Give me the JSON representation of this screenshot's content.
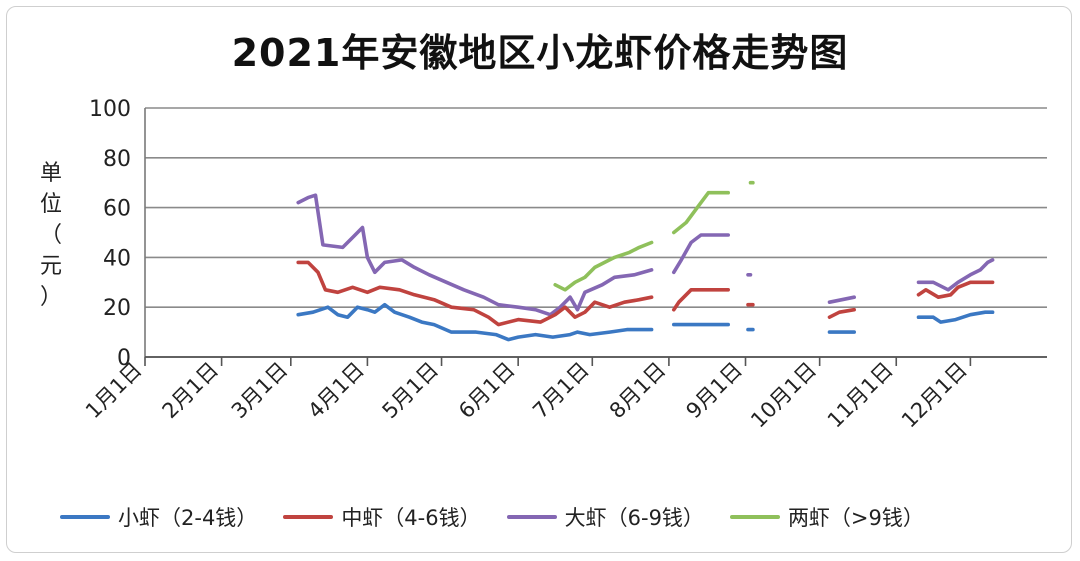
{
  "title": "2021年安徽地区小龙虾价格走势图",
  "colors": {
    "small": "#3b78c3",
    "medium": "#c0433f",
    "large": "#8467b3",
    "xl": "#8fc05b",
    "grid": "#8a8a8a"
  },
  "chart_data": {
    "type": "line",
    "title": "2021年安徽地区小龙虾价格走势图",
    "xlabel": "",
    "ylabel": "单位（元）",
    "ylim": [
      0,
      100
    ],
    "yticks": [
      "0",
      "20",
      "40",
      "60",
      "80",
      "100"
    ],
    "xlim_days": [
      0,
      365
    ],
    "xticks": [
      "1月1日",
      "2月1日",
      "3月1日",
      "4月1日",
      "5月1日",
      "6月1日",
      "7月1日",
      "8月1日",
      "9月1日",
      "10月1日",
      "11月1日",
      "12月1日"
    ],
    "grid": "horizontal",
    "legend_position": "bottom",
    "series": [
      {
        "name": "小虾（2-4钱）",
        "color": "#3b78c3",
        "segments": [
          [
            [
              "3月4日",
              17
            ],
            [
              "3月10日",
              18
            ],
            [
              "3月16日",
              20
            ],
            [
              "3月20日",
              17
            ],
            [
              "3月24日",
              16
            ],
            [
              "3月28日",
              20
            ],
            [
              "4月1日",
              19
            ],
            [
              "4月4日",
              18
            ],
            [
              "4月8日",
              21
            ],
            [
              "4月12日",
              18
            ],
            [
              "4月18日",
              16
            ],
            [
              "4月23日",
              14
            ],
            [
              "4月28日",
              13
            ],
            [
              "5月5日",
              10
            ],
            [
              "5月15日",
              10
            ],
            [
              "5月23日",
              9
            ],
            [
              "5月28日",
              7
            ],
            [
              "6月1日",
              8
            ],
            [
              "6月8日",
              9
            ],
            [
              "6月15日",
              8
            ],
            [
              "6月22日",
              9
            ],
            [
              "6月25日",
              10
            ],
            [
              "6月30日",
              9
            ],
            [
              "7月8日",
              10
            ],
            [
              "7月15日",
              11
            ],
            [
              "7月25日",
              11
            ]
          ],
          [
            [
              "8月3日",
              13
            ],
            [
              "8月25日",
              13
            ]
          ],
          [
            [
              "9月2日",
              11
            ],
            [
              "9月4日",
              11
            ]
          ],
          [
            [
              "10月5日",
              10
            ],
            [
              "10月10日",
              10
            ],
            [
              "10月15日",
              10
            ]
          ],
          [
            [
              "11月10日",
              16
            ],
            [
              "11月16日",
              16
            ],
            [
              "11月19日",
              14
            ],
            [
              "11月25日",
              15
            ],
            [
              "12月1日",
              17
            ],
            [
              "12月7日",
              18
            ],
            [
              "12月10日",
              18
            ]
          ]
        ]
      },
      {
        "name": "中虾（4-6钱）",
        "color": "#c0433f",
        "segments": [
          [
            [
              "3月4日",
              38
            ],
            [
              "3月8日",
              38
            ],
            [
              "3月12日",
              34
            ],
            [
              "3月15日",
              27
            ],
            [
              "3月20日",
              26
            ],
            [
              "3月26日",
              28
            ],
            [
              "4月1日",
              26
            ],
            [
              "4月6日",
              28
            ],
            [
              "4月14日",
              27
            ],
            [
              "4月20日",
              25
            ],
            [
              "4月28日",
              23
            ],
            [
              "5月5日",
              20
            ],
            [
              "5月14日",
              19
            ],
            [
              "5月20日",
              16
            ],
            [
              "5月24日",
              13
            ],
            [
              "6月1日",
              15
            ],
            [
              "6月10日",
              14
            ],
            [
              "6月16日",
              17
            ],
            [
              "6月20日",
              20
            ],
            [
              "6月24日",
              16
            ],
            [
              "6月28日",
              18
            ],
            [
              "7月2日",
              22
            ],
            [
              "7月8日",
              20
            ],
            [
              "7月14日",
              22
            ],
            [
              "7月20日",
              23
            ],
            [
              "7月25日",
              24
            ]
          ],
          [
            [
              "8月3日",
              19
            ],
            [
              "8月5日",
              22
            ],
            [
              "8月10日",
              27
            ],
            [
              "8月25日",
              27
            ]
          ],
          [
            [
              "9月2日",
              21
            ],
            [
              "9月4日",
              21
            ]
          ],
          [
            [
              "10月5日",
              16
            ],
            [
              "10月9日",
              18
            ],
            [
              "10月15日",
              19
            ]
          ],
          [
            [
              "11月10日",
              25
            ],
            [
              "11月13日",
              27
            ],
            [
              "11月18日",
              24
            ],
            [
              "11月23日",
              25
            ],
            [
              "11月26日",
              28
            ],
            [
              "12月1日",
              30
            ],
            [
              "12月7日",
              30
            ],
            [
              "12月10日",
              30
            ]
          ]
        ]
      },
      {
        "name": "大虾（6-9钱）",
        "color": "#8467b3",
        "segments": [
          [
            [
              "3月4日",
              62
            ],
            [
              "3月8日",
              64
            ],
            [
              "3月11日",
              65
            ],
            [
              "3月14日",
              45
            ],
            [
              "3月22日",
              44
            ],
            [
              "3月26日",
              48
            ],
            [
              "3月30日",
              52
            ],
            [
              "4月1日",
              40
            ],
            [
              "4月4日",
              34
            ],
            [
              "4月8日",
              38
            ],
            [
              "4月15日",
              39
            ],
            [
              "4月20日",
              36
            ],
            [
              "4月26日",
              33
            ],
            [
              "5月3日",
              30
            ],
            [
              "5月10日",
              27
            ],
            [
              "5月18日",
              24
            ],
            [
              "5月24日",
              21
            ],
            [
              "6月1日",
              20
            ],
            [
              "6月8日",
              19
            ],
            [
              "6月14日",
              17
            ],
            [
              "6月18日",
              20
            ],
            [
              "6月22日",
              24
            ],
            [
              "6月25日",
              19
            ],
            [
              "6月28日",
              26
            ],
            [
              "7月5日",
              29
            ],
            [
              "7月10日",
              32
            ],
            [
              "7月18日",
              33
            ],
            [
              "7月25日",
              35
            ]
          ],
          [
            [
              "8月3日",
              34
            ],
            [
              "8月6日",
              39
            ],
            [
              "8月10日",
              46
            ],
            [
              "8月14日",
              49
            ],
            [
              "8月25日",
              49
            ]
          ],
          [
            [
              "9月2日",
              33
            ],
            [
              "9月3日",
              33
            ]
          ],
          [
            [
              "10月5日",
              22
            ],
            [
              "10月10日",
              23
            ],
            [
              "10月15日",
              24
            ]
          ],
          [
            [
              "11月10日",
              30
            ],
            [
              "11月16日",
              30
            ],
            [
              "11月22日",
              27
            ],
            [
              "11月26日",
              30
            ],
            [
              "12月1日",
              33
            ],
            [
              "12月5日",
              35
            ],
            [
              "12月8日",
              38
            ],
            [
              "12月10日",
              39
            ]
          ]
        ]
      },
      {
        "name": "两虾（>9钱）",
        "color": "#8fc05b",
        "segments": [
          [
            [
              "6月16日",
              29
            ],
            [
              "6月20日",
              27
            ],
            [
              "6月24日",
              30
            ],
            [
              "6月28日",
              32
            ],
            [
              "7月2日",
              36
            ],
            [
              "7月6日",
              38
            ],
            [
              "7月10日",
              40
            ],
            [
              "7月16日",
              42
            ],
            [
              "7月20日",
              44
            ],
            [
              "7月25日",
              46
            ]
          ],
          [
            [
              "8月3日",
              50
            ],
            [
              "8月8日",
              54
            ],
            [
              "8月14日",
              62
            ],
            [
              "8月17日",
              66
            ],
            [
              "8月25日",
              66
            ]
          ],
          [
            [
              "9月3日",
              70
            ],
            [
              "9月4日",
              70
            ]
          ]
        ]
      }
    ]
  },
  "ylabel_chars": [
    "单",
    "位",
    "（",
    "元",
    "）"
  ],
  "legend": [
    {
      "label": "小虾（2-4钱）",
      "color": "#3b78c3"
    },
    {
      "label": "中虾（4-6钱）",
      "color": "#c0433f"
    },
    {
      "label": "大虾（6-9钱）",
      "color": "#8467b3"
    },
    {
      "label": "两虾（>9钱）",
      "color": "#8fc05b"
    }
  ]
}
